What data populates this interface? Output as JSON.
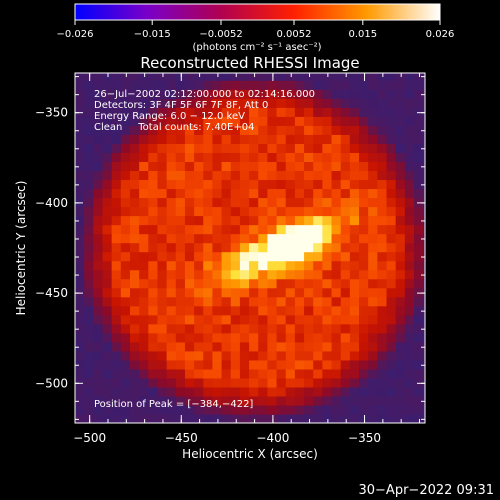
{
  "colorbar": {
    "tick_labels": [
      "−0.026",
      "−0.015",
      "−0.0052",
      "0.0052",
      "0.015",
      "0.026"
    ],
    "tick_values": [
      -0.026,
      -0.015,
      -0.0052,
      0.0052,
      0.015,
      0.026
    ],
    "range": [
      -0.026,
      0.026
    ],
    "units": "(photons cm⁻² s⁻¹ asec⁻²)",
    "colors": [
      "#0000ff",
      "#7a00c8",
      "#b00050",
      "#ff2000",
      "#ff9a00",
      "#ffffff"
    ]
  },
  "chart_data": {
    "type": "heatmap",
    "title": "Reconstructed RHESSI Image",
    "xlabel": "Heliocentric X (arcsec)",
    "ylabel": "Heliocentric Y (arcsec)",
    "xlim": [
      -508,
      -317
    ],
    "ylim": [
      -522,
      -328
    ],
    "x_ticks": [
      -500,
      -450,
      -400,
      -350
    ],
    "x_tick_labels": [
      "−500",
      "−450",
      "−400",
      "−350"
    ],
    "y_ticks": [
      -350,
      -400,
      -450,
      -500
    ],
    "y_tick_labels": [
      "−350",
      "−400",
      "−450",
      "−500"
    ],
    "peak_position": [
      -384,
      -422
    ],
    "source_center": [
      -410,
      -425
    ],
    "source_radius": 75,
    "info_lines": [
      "26−Jul−2002 02:12:00.000 to 02:14:16.000",
      "Detectors: 3F 4F 5F 6F 7F 8F, Att 0",
      "Energy Range: 6.0 − 12.0 keV",
      "Clean     Total counts: 7.40E+04"
    ],
    "peak_label": "Position of Peak = [−384,−422]"
  },
  "datestamp": "30−Apr−2022 09:31"
}
